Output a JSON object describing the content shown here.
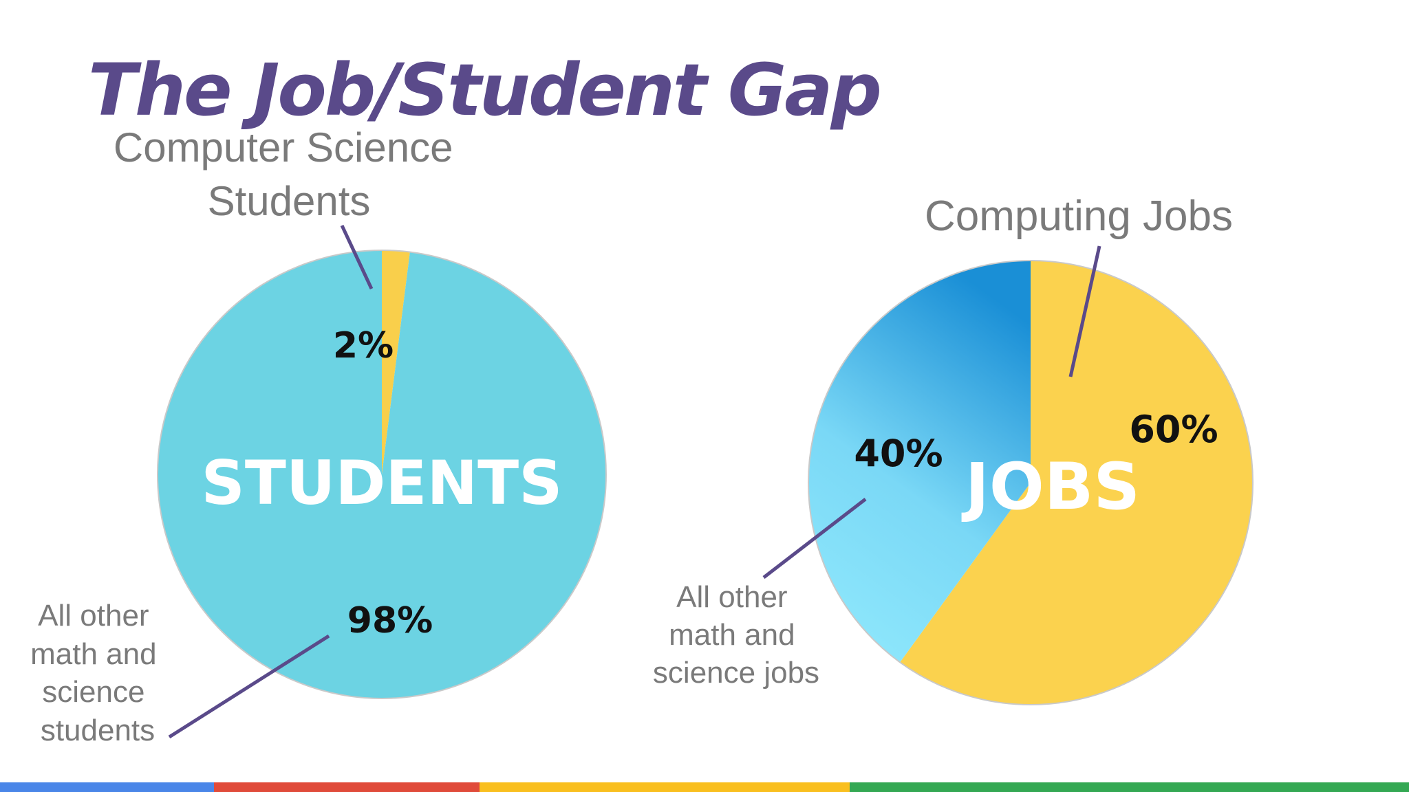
{
  "title": "The Job/Student Gap",
  "chart_data": [
    {
      "type": "pie",
      "center_label": "STUDENTS",
      "slices": [
        {
          "label": "Computer Science Students",
          "value": 2,
          "display": "2%",
          "color": "#f9cf4b"
        },
        {
          "label": "All other math and science students",
          "value": 98,
          "display": "98%",
          "color": "#6cd3e3"
        }
      ]
    },
    {
      "type": "pie",
      "center_label": "JOBS",
      "slices": [
        {
          "label": "Computing Jobs",
          "value": 60,
          "display": "60%",
          "color": "#fbd24e"
        },
        {
          "label": "All other math and science jobs",
          "value": 40,
          "display": "40%",
          "color": "#5cc4ee"
        }
      ]
    }
  ],
  "annotations": {
    "students_cs": [
      "Computer Science",
      "Students"
    ],
    "students_other": [
      "All other",
      "math and",
      "science",
      "students"
    ],
    "jobs_computing": [
      "Computing Jobs"
    ],
    "jobs_other": [
      "All other",
      "math and",
      "science jobs"
    ]
  },
  "colors": {
    "title": "#5a4a8a",
    "leader_line": "#5a4a8a",
    "pie_border": "#c9c9c9",
    "bottom_bar": [
      "#4a86e8",
      "#e04b3a",
      "#f9bf1f",
      "#34a853"
    ]
  }
}
